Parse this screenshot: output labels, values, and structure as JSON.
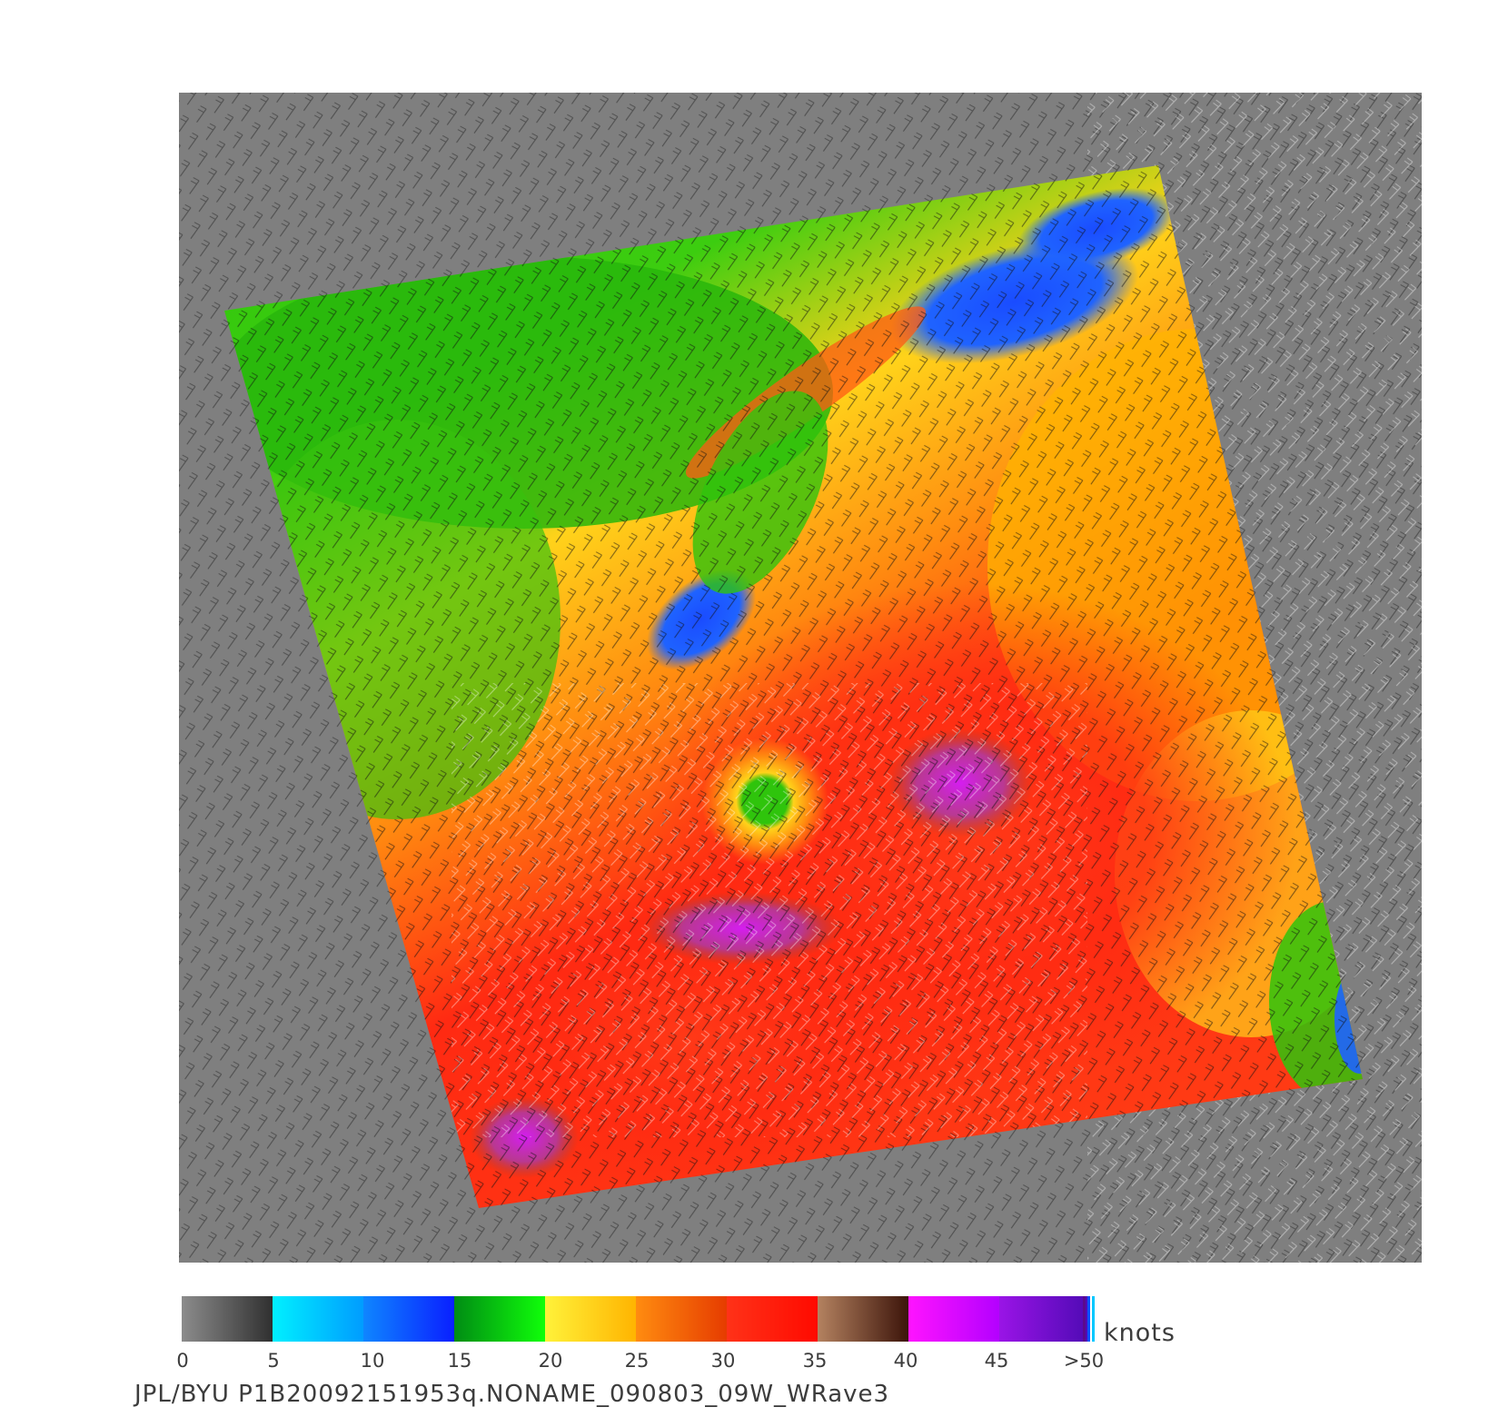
{
  "colors": {
    "background_gray": "#7f7f7f",
    "low_wind_blue": "#1f63ff",
    "green": "#2fc40c",
    "yellow": "#ffd21a",
    "orange": "#ff7a12",
    "red": "#ff2a12",
    "brown": "#8b4a32",
    "magenta": "#d51df0"
  },
  "colorbar": {
    "unit_label": "knots",
    "tick_labels": [
      "0",
      "5",
      "10",
      "15",
      "20",
      "25",
      "30",
      "35",
      "40",
      "45",
      ">50"
    ],
    "segments": [
      {
        "from": "#8c8c8c",
        "to": "#303030"
      },
      {
        "from": "#00f0ff",
        "to": "#009cff"
      },
      {
        "from": "#0f86ff",
        "to": "#0a1fff"
      },
      {
        "from": "#008c14",
        "to": "#10ff0a"
      },
      {
        "from": "#fff23a",
        "to": "#ffb400"
      },
      {
        "from": "#ff8c10",
        "to": "#e63c00"
      },
      {
        "from": "#ff3218",
        "to": "#ff0a00"
      },
      {
        "from": "#b48260",
        "to": "#3c140a"
      },
      {
        "from": "#ff14ff",
        "to": "#b400ff"
      },
      {
        "from": "#9a14e6",
        "to": "#4e0ab4"
      }
    ]
  },
  "footer": {
    "caption": "JPL/BYU  P1B20092151953q.NONAME_090803_09W_WRave3"
  }
}
